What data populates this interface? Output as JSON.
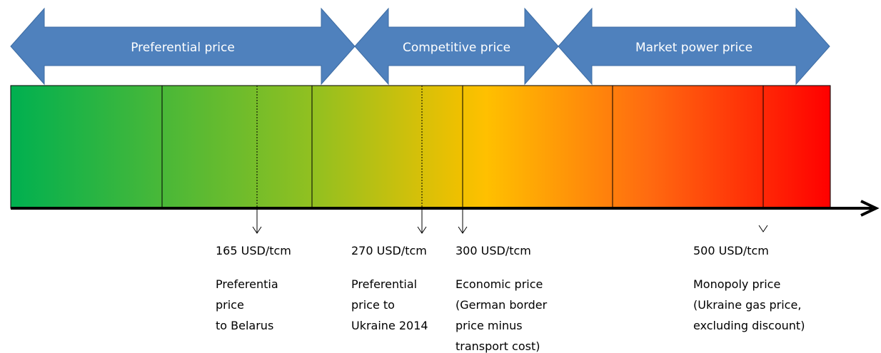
{
  "arrows": [
    {
      "label": "Preferential price"
    },
    {
      "label": "Competitive price"
    },
    {
      "label": "Market power price"
    }
  ],
  "markers": [
    {
      "price": "165 USD/tcm",
      "description": [
        "Preferentia",
        "price",
        "to Belarus"
      ]
    },
    {
      "price": "270 USD/tcm",
      "description": [
        "Preferential",
        "price to",
        "Ukraine 2014"
      ]
    },
    {
      "price": "300 USD/tcm",
      "description": [
        "Economic price",
        "(German border",
        "price minus",
        "transport cost)"
      ]
    },
    {
      "price": "500 USD/tcm",
      "description": [
        "Monopoly price",
        "(Ukraine gas price,",
        "excluding discount)"
      ]
    }
  ]
}
